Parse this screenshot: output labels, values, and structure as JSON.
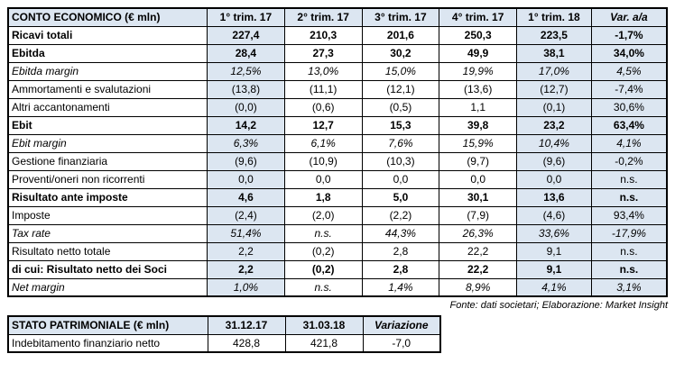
{
  "colors": {
    "highlight_bg": "#dce6f1",
    "border": "#000000",
    "text": "#000000",
    "background": "#ffffff"
  },
  "chart_data": [
    {
      "type": "table",
      "title": "CONTO ECONOMICO (€ mln)",
      "columns": [
        "CONTO ECONOMICO (€ mln)",
        "1° trim. 17",
        "2° trim. 17",
        "3° trim. 17",
        "4° trim. 17",
        "1° trim. 18",
        "Var. a/a"
      ],
      "highlight_data_columns": [
        true,
        false,
        false,
        false,
        true,
        true
      ],
      "rows": [
        {
          "label": "Ricavi totali",
          "style": "bold",
          "values": [
            "227,4",
            "210,3",
            "201,6",
            "250,3",
            "223,5",
            "-1,7%"
          ]
        },
        {
          "label": "Ebitda",
          "style": "bold",
          "values": [
            "28,4",
            "27,3",
            "30,2",
            "49,9",
            "38,1",
            "34,0%"
          ]
        },
        {
          "label": "Ebitda margin",
          "style": "italic",
          "values": [
            "12,5%",
            "13,0%",
            "15,0%",
            "19,9%",
            "17,0%",
            "4,5%"
          ]
        },
        {
          "label": "Ammortamenti e svalutazioni",
          "style": "regular",
          "values": [
            "(13,8)",
            "(11,1)",
            "(12,1)",
            "(13,6)",
            "(12,7)",
            "-7,4%"
          ]
        },
        {
          "label": "Altri accantonamenti",
          "style": "regular",
          "values": [
            "(0,0)",
            "(0,6)",
            "(0,5)",
            "1,1",
            "(0,1)",
            "30,6%"
          ]
        },
        {
          "label": "Ebit",
          "style": "bold",
          "values": [
            "14,2",
            "12,7",
            "15,3",
            "39,8",
            "23,2",
            "63,4%"
          ]
        },
        {
          "label": "Ebit margin",
          "style": "italic",
          "values": [
            "6,3%",
            "6,1%",
            "7,6%",
            "15,9%",
            "10,4%",
            "4,1%"
          ]
        },
        {
          "label": "Gestione finanziaria",
          "style": "regular",
          "values": [
            "(9,6)",
            "(10,9)",
            "(10,3)",
            "(9,7)",
            "(9,6)",
            "-0,2%"
          ]
        },
        {
          "label": "Proventi/oneri non ricorrenti",
          "style": "regular",
          "values": [
            "0,0",
            "0,0",
            "0,0",
            "0,0",
            "0,0",
            "n.s."
          ]
        },
        {
          "label": "Risultato ante imposte",
          "style": "bold",
          "values": [
            "4,6",
            "1,8",
            "5,0",
            "30,1",
            "13,6",
            "n.s."
          ]
        },
        {
          "label": "Imposte",
          "style": "regular",
          "values": [
            "(2,4)",
            "(2,0)",
            "(2,2)",
            "(7,9)",
            "(4,6)",
            "93,4%"
          ]
        },
        {
          "label": "Tax rate",
          "style": "italic",
          "values": [
            "51,4%",
            "n.s.",
            "44,3%",
            "26,3%",
            "33,6%",
            "-17,9%"
          ]
        },
        {
          "label": "Risultato netto totale",
          "style": "regular",
          "values": [
            "2,2",
            "(0,2)",
            "2,8",
            "22,2",
            "9,1",
            "n.s."
          ]
        },
        {
          "label": "di cui: Risultato netto dei Soci",
          "style": "bold",
          "values": [
            "2,2",
            "(0,2)",
            "2,8",
            "22,2",
            "9,1",
            "n.s."
          ]
        },
        {
          "label": "Net margin",
          "style": "italic",
          "values": [
            "1,0%",
            "n.s.",
            "1,4%",
            "8,9%",
            "4,1%",
            "3,1%"
          ]
        }
      ],
      "note": "Fonte: dati societari; Elaborazione: Market Insight"
    },
    {
      "type": "table",
      "title": "STATO PATRIMONIALE (€ mln)",
      "columns": [
        "STATO PATRIMONIALE (€ mln)",
        "31.12.17",
        "31.03.18",
        "Variazione"
      ],
      "highlight_data_columns": [
        false,
        false,
        false
      ],
      "rows": [
        {
          "label": "Indebitamento finanziario netto",
          "style": "regular",
          "values": [
            "428,8",
            "421,8",
            "-7,0"
          ]
        }
      ]
    }
  ]
}
